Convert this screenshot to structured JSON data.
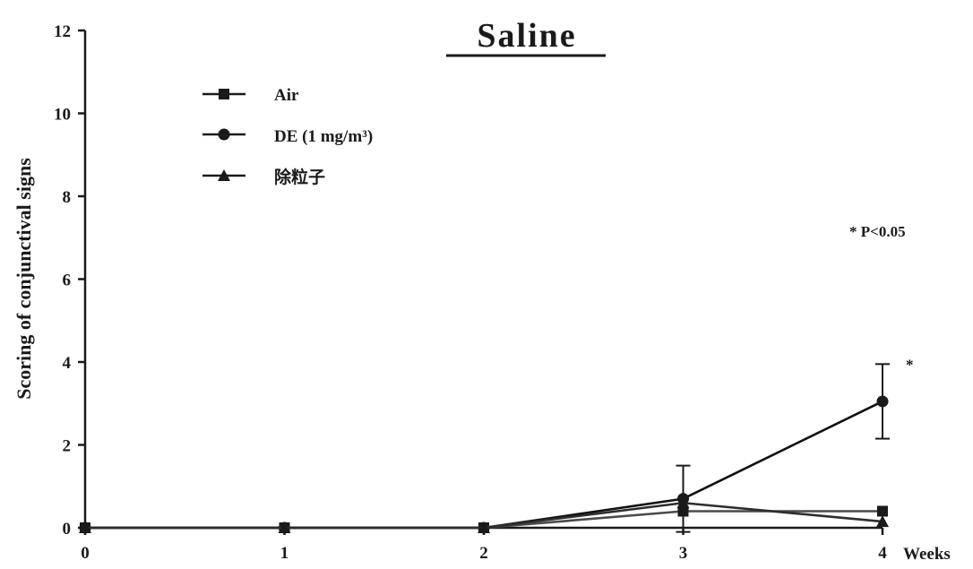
{
  "chart_data": {
    "type": "line",
    "title": "Saline",
    "xlabel": "Weeks",
    "ylabel": "Scoring of conjunctival signs",
    "x": [
      0,
      1,
      2,
      3,
      4
    ],
    "x_tick_labels": [
      "0",
      "1",
      "2",
      "3",
      "4"
    ],
    "y_ticks": [
      0,
      2,
      4,
      6,
      8,
      10,
      12
    ],
    "ylim": [
      0,
      12
    ],
    "xlim": [
      0,
      4
    ],
    "grid": false,
    "legend_position": "top-left",
    "series": [
      {
        "name": "Air",
        "marker": "square",
        "values": [
          0,
          0,
          0,
          0.4,
          0.4
        ],
        "errors": [
          0,
          0,
          0,
          0,
          0
        ]
      },
      {
        "name": "DE (1 mg/m³)",
        "marker": "circle",
        "values": [
          0,
          0,
          0,
          0.7,
          3.05
        ],
        "errors": [
          0,
          0,
          0,
          0.8,
          0.9
        ]
      },
      {
        "name": "除粒子",
        "marker": "triangle",
        "values": [
          0,
          0,
          0,
          0.6,
          0.15
        ],
        "errors": [
          0,
          0,
          0,
          0,
          0
        ]
      }
    ],
    "annotations": [
      {
        "text": "*",
        "x": 4,
        "y": 3.05
      }
    ],
    "significance_note": "* P<0.05"
  }
}
